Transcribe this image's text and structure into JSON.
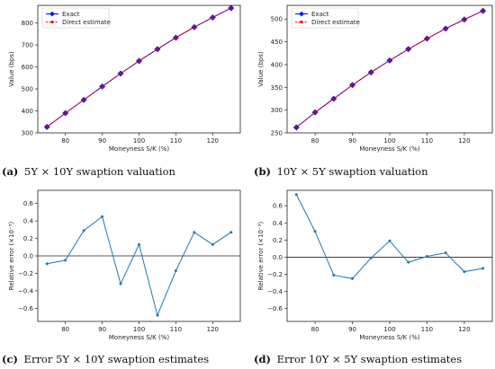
{
  "chart_data": [
    {
      "type": "line",
      "panel_id": "(a)",
      "caption": "5Y × 10Y swaption valuation",
      "xlabel": "Moneyness S/K (%)",
      "ylabel": "Value (bps)",
      "xlim": [
        72.5,
        127.5
      ],
      "ylim": [
        300,
        880
      ],
      "xticks": [
        80,
        90,
        100,
        110,
        120
      ],
      "yticks": [
        300,
        400,
        500,
        600,
        700,
        800
      ],
      "legend": "top-left",
      "x": [
        75,
        80,
        85,
        90,
        95,
        100,
        105,
        110,
        115,
        120,
        125
      ],
      "series": [
        {
          "name": "Exact",
          "color": "#0000ff",
          "marker": "diamond",
          "values": [
            327,
            390,
            450,
            511,
            570,
            627,
            681,
            733,
            781,
            825,
            868
          ]
        },
        {
          "name": "Direct estimate",
          "color": "#ff0000",
          "marker": "dot",
          "dash": true,
          "values": [
            327,
            390,
            450,
            511,
            570,
            627,
            681,
            733,
            781,
            825,
            868
          ]
        }
      ]
    },
    {
      "type": "line",
      "panel_id": "(b)",
      "caption": "10Y × 5Y swaption valuation",
      "xlabel": "Moneyness S/K (%)",
      "ylabel": "Value (bps)",
      "xlim": [
        72.5,
        127.5
      ],
      "ylim": [
        250,
        530
      ],
      "xticks": [
        80,
        90,
        100,
        110,
        120
      ],
      "yticks": [
        250,
        300,
        350,
        400,
        450,
        500
      ],
      "legend": "top-left",
      "x": [
        75,
        80,
        85,
        90,
        95,
        100,
        105,
        110,
        115,
        120,
        125
      ],
      "series": [
        {
          "name": "Exact",
          "color": "#0000ff",
          "marker": "diamond",
          "values": [
            262,
            295,
            325,
            355,
            383,
            409,
            434,
            457,
            479,
            499,
            518
          ]
        },
        {
          "name": "Direct estimate",
          "color": "#ff0000",
          "marker": "dot",
          "dash": true,
          "values": [
            262,
            295,
            325,
            355,
            383,
            409,
            434,
            457,
            479,
            499,
            518
          ]
        }
      ]
    },
    {
      "type": "line",
      "panel_id": "(c)",
      "caption": "Error 5Y × 10Y swaption estimates",
      "xlabel": "Moneyness S/K (%)",
      "ylabel": "Relative error (×10⁻³)",
      "xlim": [
        72.5,
        127.5
      ],
      "ylim": [
        -0.75,
        0.75
      ],
      "xticks": [
        80,
        90,
        100,
        110,
        120
      ],
      "yticks": [
        -0.6,
        -0.4,
        -0.2,
        0.0,
        0.2,
        0.4,
        0.6
      ],
      "ytick_labels": [
        "−0.6",
        "−0.4",
        "−0.2",
        "0.0",
        "0.2",
        "0.4",
        "0.6"
      ],
      "zero_line": true,
      "x": [
        75,
        80,
        85,
        90,
        95,
        100,
        105,
        110,
        115,
        120,
        125
      ],
      "series": [
        {
          "color": "#1f77b4",
          "values": [
            -0.09,
            -0.05,
            0.29,
            0.45,
            -0.32,
            0.13,
            -0.68,
            -0.17,
            0.27,
            0.13,
            0.27
          ]
        }
      ]
    },
    {
      "type": "line",
      "panel_id": "(d)",
      "caption": "Error 10Y × 5Y swaption estimates",
      "xlabel": "Moneyness S/K (%)",
      "ylabel": "Relative error (×10⁻³)",
      "xlim": [
        72.5,
        127.5
      ],
      "ylim": [
        -0.75,
        0.78
      ],
      "xticks": [
        80,
        90,
        100,
        110,
        120
      ],
      "yticks": [
        -0.6,
        -0.4,
        -0.2,
        0.0,
        0.2,
        0.4,
        0.6
      ],
      "ytick_labels": [
        "−0.6",
        "−0.4",
        "−0.2",
        "0.0",
        "0.2",
        "0.4",
        "0.6"
      ],
      "zero_line": true,
      "x": [
        75,
        80,
        85,
        90,
        95,
        100,
        105,
        110,
        115,
        120,
        125
      ],
      "series": [
        {
          "color": "#1f77b4",
          "values": [
            0.73,
            0.3,
            -0.21,
            -0.25,
            -0.01,
            0.19,
            -0.06,
            0.01,
            0.05,
            -0.17,
            -0.13
          ]
        }
      ]
    }
  ]
}
